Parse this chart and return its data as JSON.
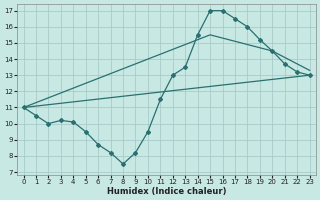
{
  "xlabel": "Humidex (Indice chaleur)",
  "bg_color": "#c8e8e4",
  "grid_color": "#a8cccc",
  "line_color": "#2a7070",
  "xlim_min": -0.5,
  "xlim_max": 23.5,
  "ylim_min": 6.8,
  "ylim_max": 17.4,
  "xticks": [
    0,
    1,
    2,
    3,
    4,
    5,
    6,
    7,
    8,
    9,
    10,
    11,
    12,
    13,
    14,
    15,
    16,
    17,
    18,
    19,
    20,
    21,
    22,
    23
  ],
  "yticks": [
    7,
    8,
    9,
    10,
    11,
    12,
    13,
    14,
    15,
    16,
    17
  ],
  "main_x": [
    0,
    1,
    2,
    3,
    4,
    5,
    6,
    7,
    8,
    9,
    10,
    11,
    12,
    13,
    14,
    15,
    16,
    17,
    18,
    19,
    20,
    21,
    22,
    23
  ],
  "main_y": [
    11.0,
    10.5,
    10.0,
    10.2,
    10.1,
    9.5,
    8.7,
    8.2,
    7.5,
    8.2,
    9.5,
    11.5,
    13.0,
    13.5,
    15.5,
    17.0,
    17.0,
    16.5,
    16.0,
    15.2,
    14.5,
    13.7,
    13.2,
    13.0
  ],
  "line2_x": [
    0,
    23
  ],
  "line2_y": [
    11.0,
    13.0
  ],
  "line3_x": [
    0,
    15,
    20,
    23
  ],
  "line3_y": [
    11.0,
    15.5,
    14.5,
    13.3
  ]
}
